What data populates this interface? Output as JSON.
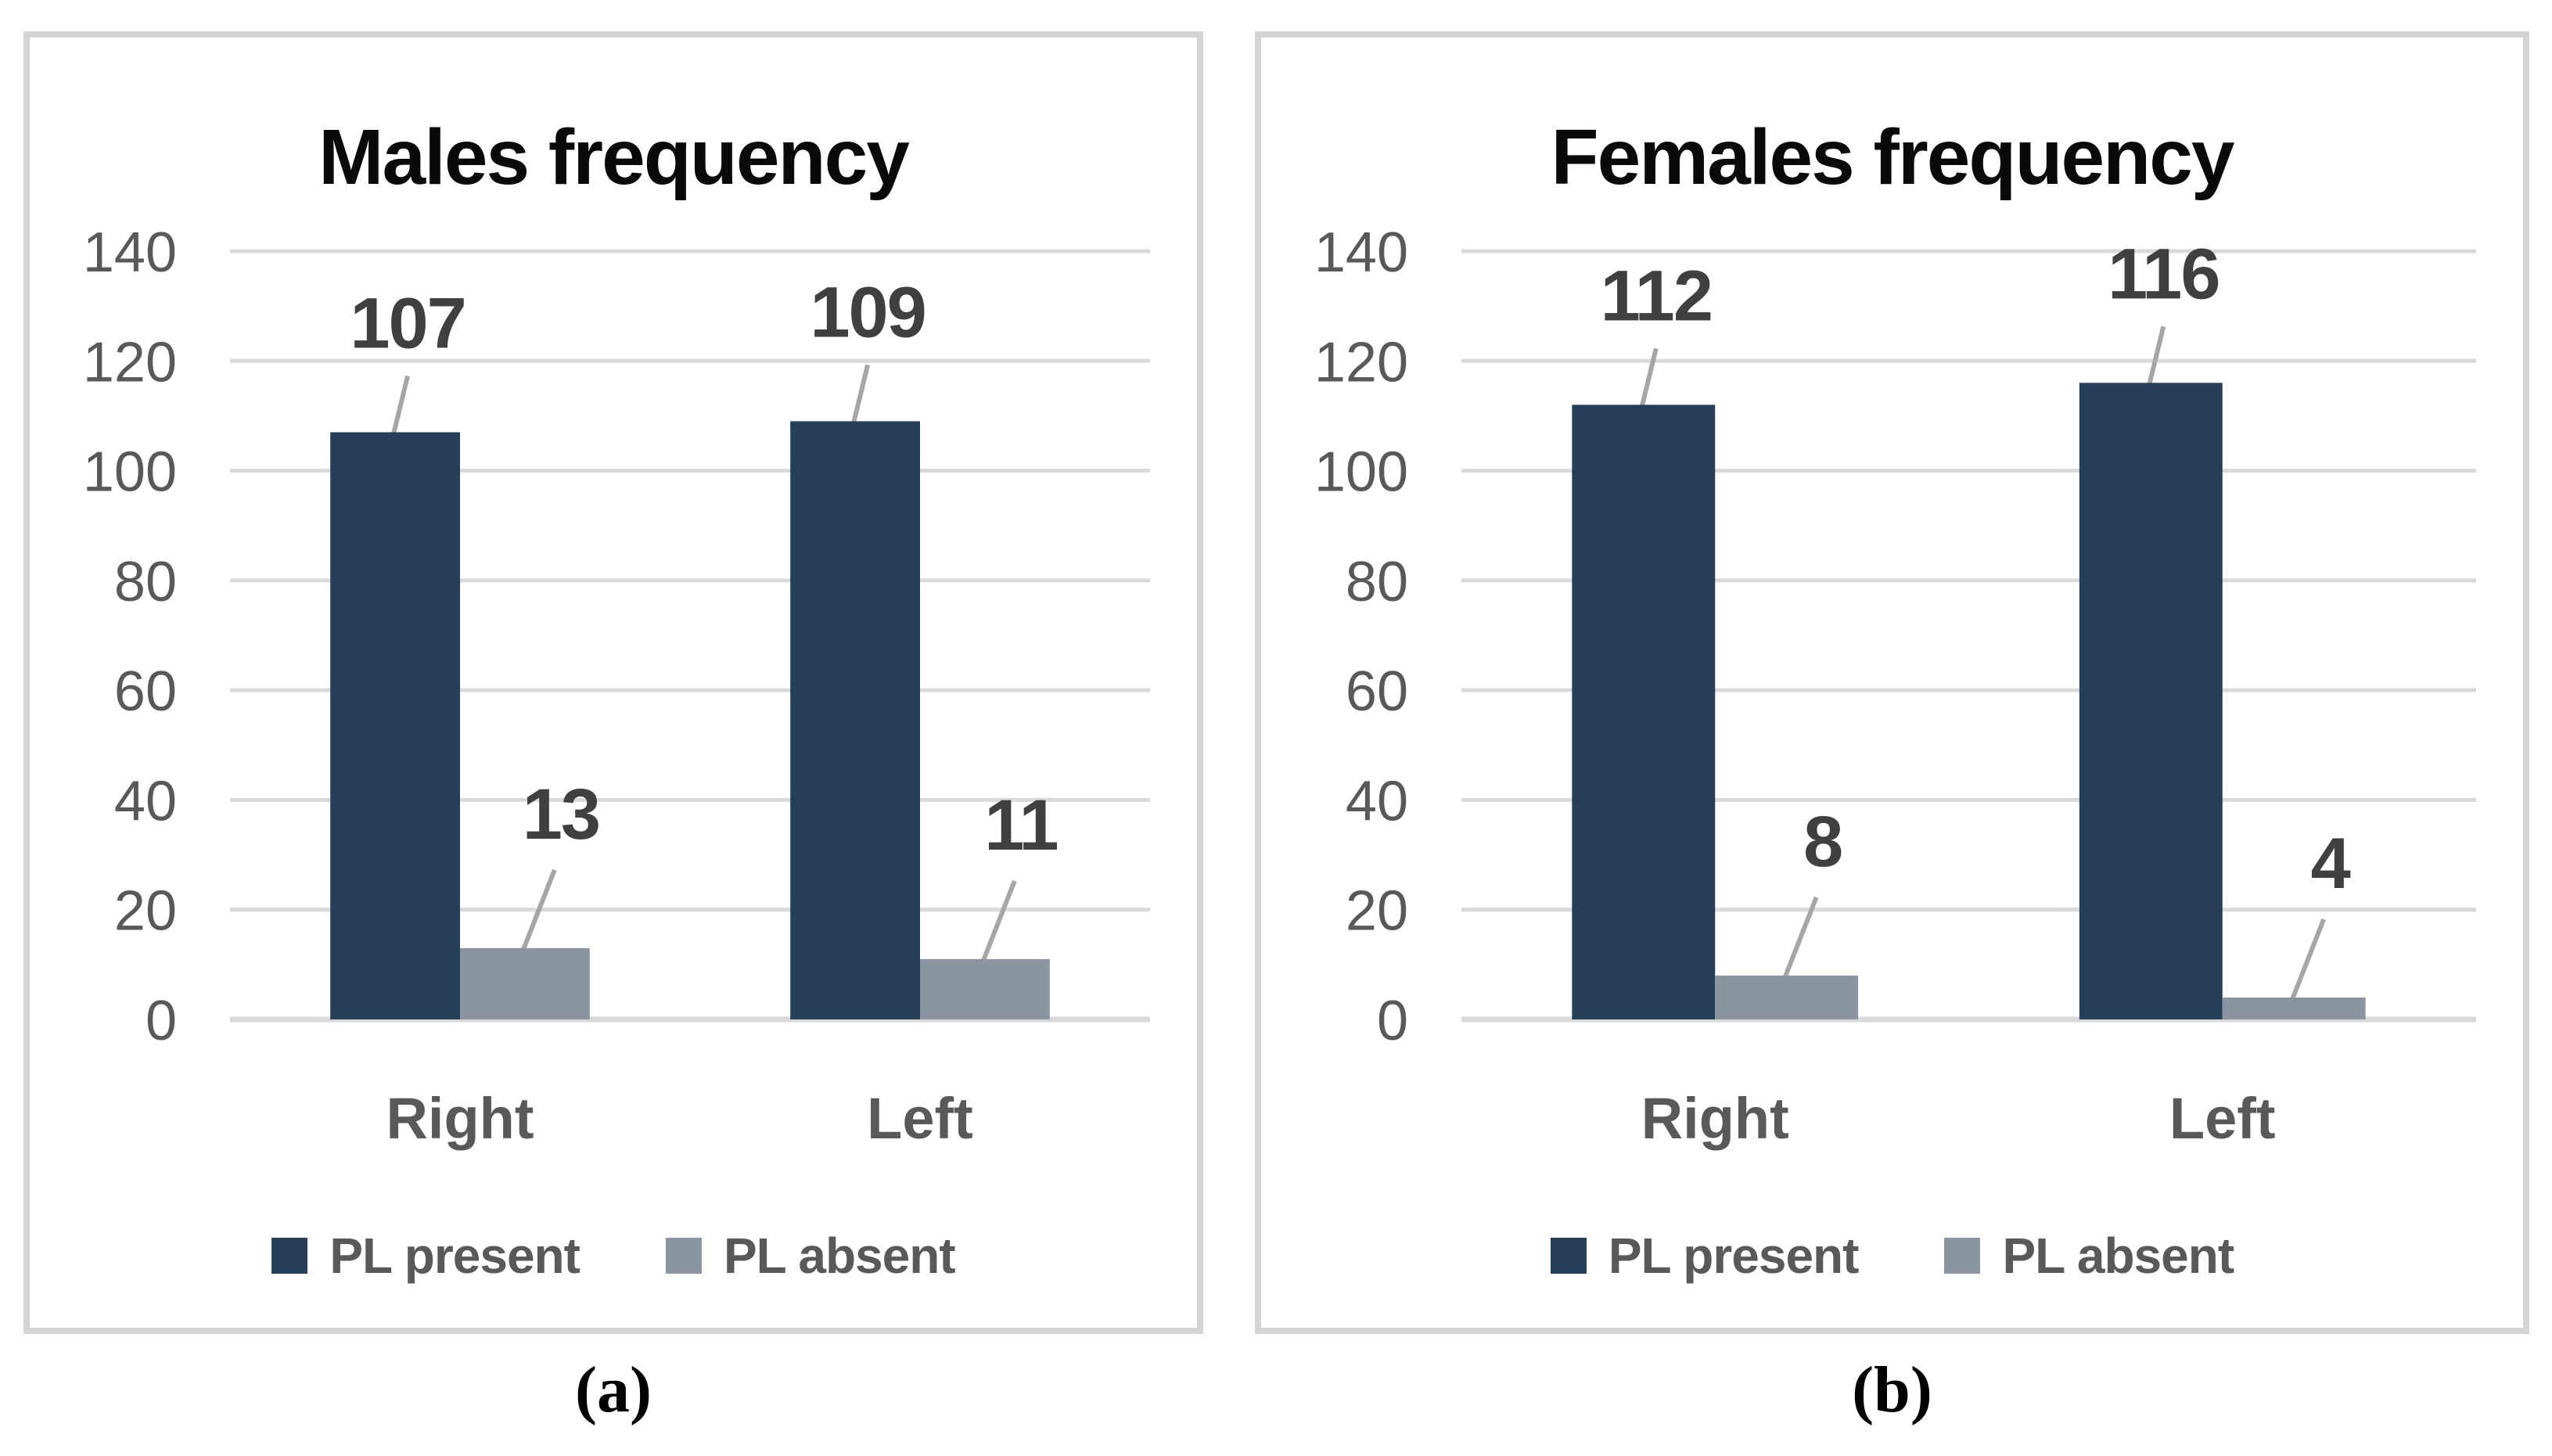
{
  "figure": {
    "background": "#FFFFFF",
    "captions": {
      "a": "(a)",
      "b": "(b)"
    }
  },
  "style": {
    "panel_border": "#D4D4D4",
    "gridline": "#D9D9D9",
    "leader_line": "#A6A6A6",
    "tick_label": "#595959",
    "data_label": "#404040",
    "category_label": "#595959",
    "legend_label": "#595959",
    "title": "#0A0A0A",
    "caption": "#000000"
  },
  "chart_data": [
    {
      "type": "bar",
      "title": "Males frequency",
      "caption": "(a)",
      "categories": [
        "Right",
        "Left"
      ],
      "series": [
        {
          "name": "PL present",
          "color": "#243F57",
          "values": [
            107,
            109
          ]
        },
        {
          "name": "PL absent",
          "color": "#8A95A1",
          "values": [
            13,
            11
          ]
        }
      ],
      "ylim": [
        0,
        140
      ],
      "yticks": [
        0,
        20,
        40,
        60,
        80,
        100,
        120,
        140
      ],
      "grid": true,
      "legend_position": "bottom",
      "data_labels": true
    },
    {
      "type": "bar",
      "title": "Females frequency",
      "caption": "(b)",
      "categories": [
        "Right",
        "Left"
      ],
      "series": [
        {
          "name": "PL present",
          "color": "#243F57",
          "values": [
            112,
            116
          ]
        },
        {
          "name": "PL absent",
          "color": "#8A95A1",
          "values": [
            8,
            4
          ]
        }
      ],
      "ylim": [
        0,
        140
      ],
      "yticks": [
        0,
        20,
        40,
        60,
        80,
        100,
        120,
        140
      ],
      "grid": true,
      "legend_position": "bottom",
      "data_labels": true
    }
  ]
}
